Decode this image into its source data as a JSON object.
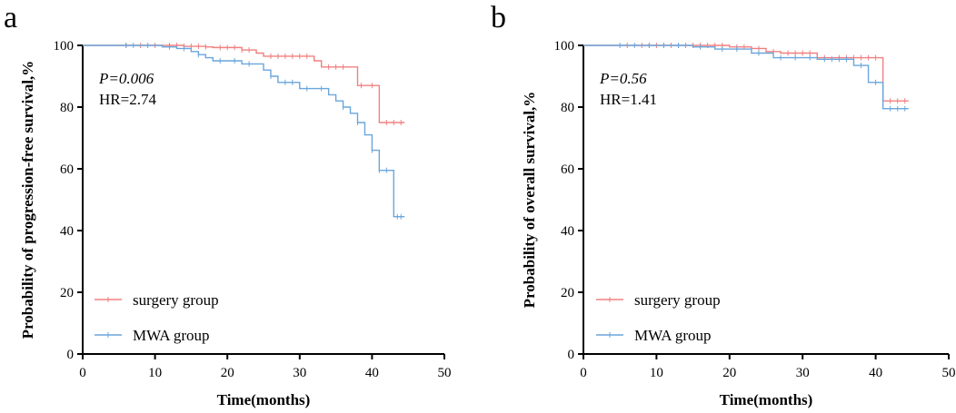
{
  "chart_data": [
    {
      "type": "line",
      "subtype": "kaplan-meier",
      "panel_label": "a",
      "xlabel": "Time(months)",
      "ylabel": "Probability of progression-free survival,%",
      "xlim": [
        0,
        50
      ],
      "ylim": [
        0,
        100
      ],
      "xticks": [
        0,
        10,
        20,
        30,
        40,
        50
      ],
      "yticks": [
        0,
        20,
        40,
        60,
        80,
        100
      ],
      "annotations": {
        "p_value": "P=0.006",
        "hr": "HR=2.74"
      },
      "legend_position": "bottom-left",
      "series": [
        {
          "name": "surgery group",
          "color": "#f08080",
          "x": [
            0,
            14,
            17,
            18,
            22,
            24,
            25,
            27,
            32,
            33,
            38,
            41,
            44.5
          ],
          "y": [
            100,
            99.7,
            99.5,
            99.3,
            98.5,
            97.5,
            96.5,
            96.5,
            95,
            93,
            87,
            75,
            75
          ],
          "censor_x": [
            6,
            8,
            10,
            12,
            13,
            14,
            15,
            16,
            17,
            19,
            20,
            21,
            22,
            23,
            26,
            27,
            28,
            29,
            30,
            31,
            34,
            35,
            36,
            38.5,
            40,
            42,
            43,
            44
          ]
        },
        {
          "name": "MWA group",
          "color": "#6aa6dc",
          "x": [
            0,
            6,
            11,
            13,
            15,
            16,
            17,
            18,
            22,
            25,
            26,
            27,
            30,
            34,
            35,
            36,
            37,
            38,
            39,
            40,
            41,
            43,
            44.5
          ],
          "y": [
            100,
            100,
            99.5,
            99,
            98,
            97,
            96,
            95,
            94,
            92,
            90,
            88,
            86,
            84,
            82,
            80,
            78,
            75,
            71,
            66,
            59.5,
            44.5,
            44.5
          ],
          "censor_x": [
            6,
            7,
            9,
            12,
            14,
            16,
            19,
            21,
            23,
            26,
            28,
            29,
            31,
            33,
            36,
            38,
            40,
            41,
            42,
            43.5,
            44
          ]
        }
      ]
    },
    {
      "type": "line",
      "subtype": "kaplan-meier",
      "panel_label": "b",
      "xlabel": "Time(months)",
      "ylabel": "Probability of overall survival,%",
      "xlim": [
        0,
        50
      ],
      "ylim": [
        0,
        100
      ],
      "xticks": [
        0,
        10,
        20,
        30,
        40,
        50
      ],
      "yticks": [
        0,
        20,
        40,
        60,
        80,
        100
      ],
      "annotations": {
        "p_value": "P=0.56",
        "hr": "HR=1.41"
      },
      "legend_position": "bottom-left",
      "series": [
        {
          "name": "surgery group",
          "color": "#f08080",
          "x": [
            0,
            20,
            23,
            25,
            27,
            32,
            41,
            44.5
          ],
          "y": [
            100,
            99.5,
            99,
            98,
            97.5,
            96,
            82,
            82
          ],
          "censor_x": [
            6,
            8,
            9,
            10,
            11,
            12,
            13,
            14,
            15,
            16,
            17,
            18,
            19,
            21,
            22,
            24,
            26,
            28,
            29,
            30,
            31,
            33,
            35,
            36,
            37,
            38,
            39,
            40,
            42,
            43,
            44
          ]
        },
        {
          "name": "MWA group",
          "color": "#6aa6dc",
          "x": [
            0,
            15,
            18,
            23,
            26,
            32,
            37,
            39,
            41,
            44.5
          ],
          "y": [
            100,
            99.5,
            98.8,
            97.5,
            96,
            95.5,
            93.5,
            88,
            79.5,
            79.5
          ],
          "censor_x": [
            5,
            7,
            9,
            11,
            13,
            16,
            19,
            21,
            24,
            27,
            29,
            31,
            33,
            34,
            35,
            36,
            38,
            40,
            42,
            43,
            44
          ]
        }
      ]
    }
  ]
}
